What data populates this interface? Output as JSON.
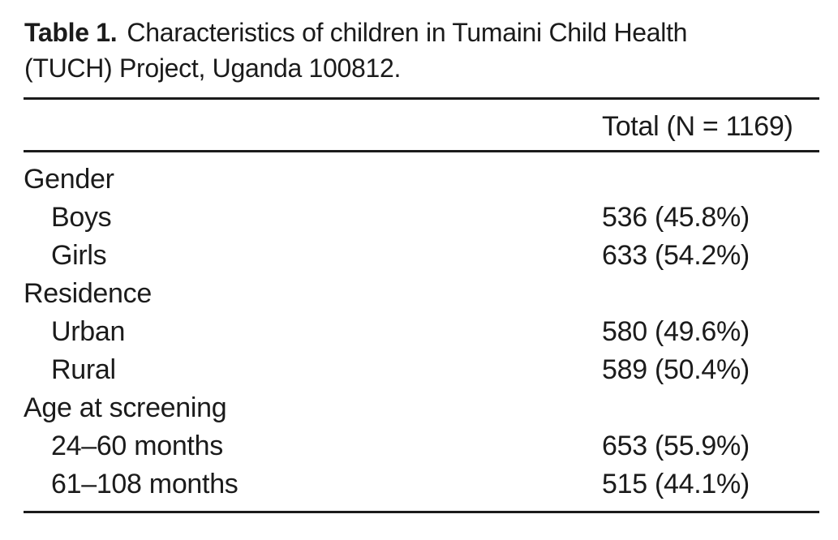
{
  "caption": {
    "number": "Table 1.",
    "line1": "Characteristics of children in Tumaini Child Health",
    "line2": "(TUCH) Project, Uganda 100812."
  },
  "table": {
    "header": {
      "total": "Total (N = 1169)"
    },
    "rows": [
      {
        "label": "Gender",
        "value": "",
        "group": true
      },
      {
        "label": "Boys",
        "value": "536 (45.8%)",
        "group": false
      },
      {
        "label": "Girls",
        "value": "633 (54.2%)",
        "group": false
      },
      {
        "label": "Residence",
        "value": "",
        "group": true
      },
      {
        "label": "Urban",
        "value": "580 (49.6%)",
        "group": false
      },
      {
        "label": "Rural",
        "value": "589 (50.4%)",
        "group": false
      },
      {
        "label": "Age at screening",
        "value": "",
        "group": true
      },
      {
        "label": "24–60 months",
        "value": "653 (55.9%)",
        "group": false
      },
      {
        "label": "61–108 months",
        "value": "515 (44.1%)",
        "group": false
      }
    ]
  },
  "colors": {
    "text": "#1b1b1b",
    "rule": "#1b1b1b",
    "background": "#ffffff"
  }
}
